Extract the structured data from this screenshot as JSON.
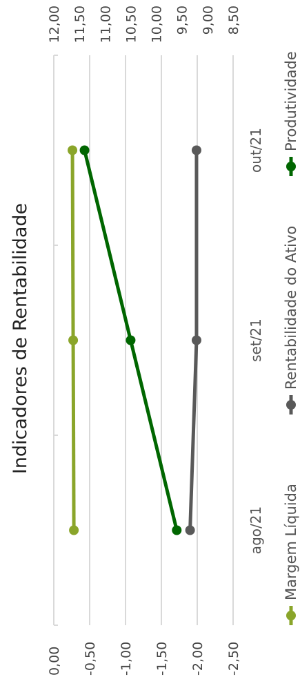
{
  "chart_data": {
    "type": "line",
    "orientation": "rotated-90-ccw",
    "title": "Indicadores de Rentabilidade",
    "categories": [
      "ago/21",
      "set/21",
      "out/21"
    ],
    "left_axis": {
      "ticks": [
        "0,00",
        "-0,50",
        "-1,00",
        "-1,50",
        "-2,00",
        "-2,50"
      ],
      "range": [
        0,
        -2.5
      ]
    },
    "right_axis": {
      "ticks": [
        "12,00",
        "11,50",
        "11,00",
        "10,50",
        "10,00",
        "9,50",
        "9,00",
        "8,50"
      ],
      "range": [
        12,
        8.5
      ]
    },
    "grid": true,
    "legend_position": "bottom",
    "series": [
      {
        "name": "Margem Líquida",
        "axis": "left",
        "color": "#8aa52a",
        "values": [
          -0.28,
          -0.27,
          -0.26
        ]
      },
      {
        "name": "Rentabilidade do Ativo",
        "axis": "left",
        "color": "#595959",
        "values": [
          -1.9,
          -1.99,
          -1.99
        ]
      },
      {
        "name": "Produtividade",
        "axis": "right",
        "color": "#006600",
        "values": [
          9.6,
          10.5,
          11.4
        ]
      }
    ]
  }
}
